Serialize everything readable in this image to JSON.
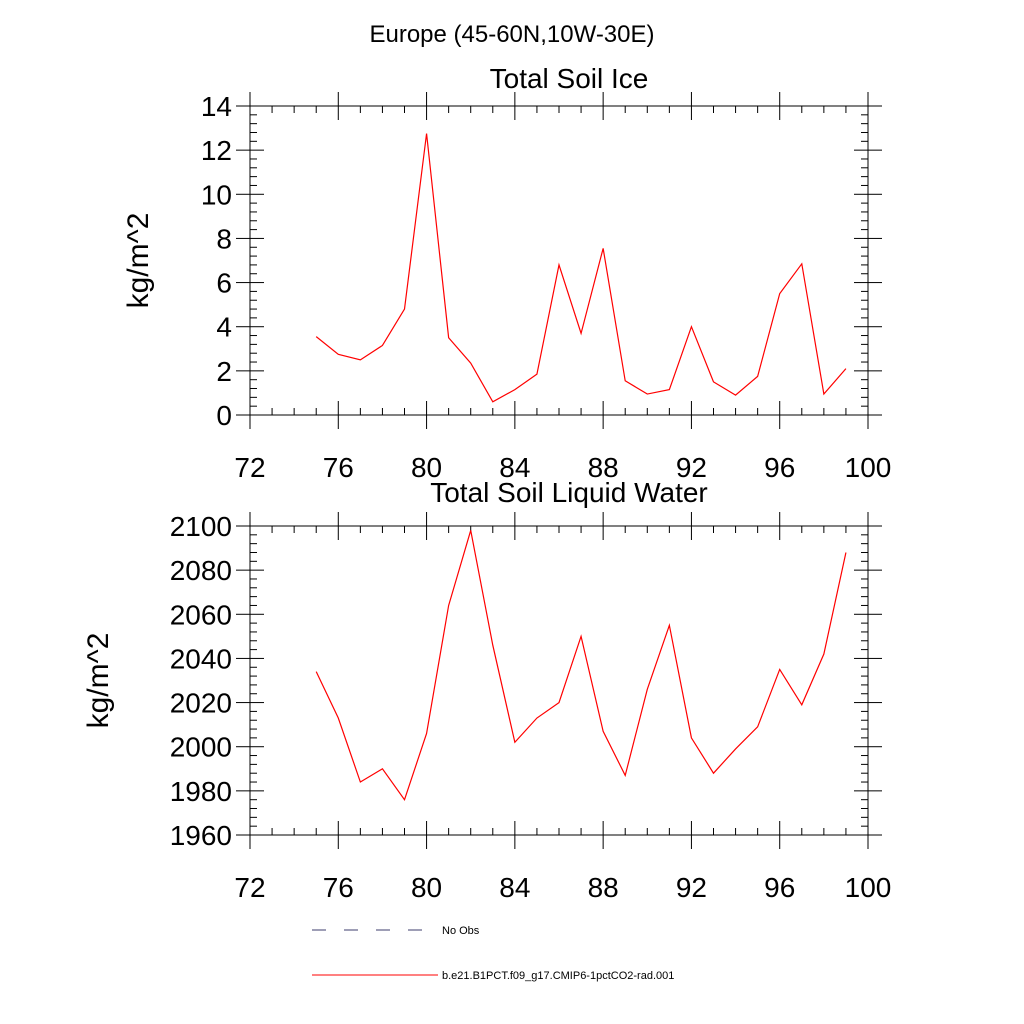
{
  "figure": {
    "title": "Europe (45-60N,10W-30E)"
  },
  "legend": {
    "items": [
      {
        "label": "No Obs",
        "style": "dashed",
        "color": "#3c3c6e"
      },
      {
        "label": "b.e21.B1PCT.f09_g17.CMIP6-1pctCO2-rad.001",
        "style": "solid",
        "color": "#ff0000"
      }
    ]
  },
  "chart_data": [
    {
      "type": "line",
      "title": "Total Soil Ice",
      "xlabel": "",
      "ylabel": "kg/m^2",
      "xlim": [
        72,
        100
      ],
      "ylim": [
        0,
        14
      ],
      "xticks": [
        72,
        76,
        80,
        84,
        88,
        92,
        96,
        100
      ],
      "yticks": [
        0,
        2,
        4,
        6,
        8,
        10,
        12,
        14
      ],
      "xtick_labels": [
        "72",
        "76",
        "80",
        "84",
        "88",
        "92",
        "96",
        "100"
      ],
      "ytick_labels": [
        "0",
        "2",
        "4",
        "6",
        "8",
        "10",
        "12",
        "14"
      ],
      "series": [
        {
          "name": "b.e21.B1PCT.f09_g17.CMIP6-1pctCO2-rad.001",
          "color": "#ff0000",
          "x": [
            75,
            76,
            77,
            78,
            79,
            80,
            81,
            82,
            83,
            84,
            85,
            86,
            87,
            88,
            89,
            90,
            91,
            92,
            93,
            94,
            95,
            96,
            97,
            98,
            99
          ],
          "y": [
            3.55,
            2.75,
            2.5,
            3.15,
            4.8,
            12.75,
            3.5,
            2.35,
            0.6,
            1.15,
            1.85,
            6.8,
            3.7,
            7.55,
            1.55,
            0.95,
            1.15,
            4.0,
            1.5,
            0.9,
            1.75,
            5.5,
            6.85,
            0.95,
            2.1
          ]
        }
      ]
    },
    {
      "type": "line",
      "title": "Total Soil Liquid Water",
      "xlabel": "",
      "ylabel": "kg/m^2",
      "xlim": [
        72,
        100
      ],
      "ylim": [
        1960,
        2100
      ],
      "xticks": [
        72,
        76,
        80,
        84,
        88,
        92,
        96,
        100
      ],
      "yticks": [
        1960,
        1980,
        2000,
        2020,
        2040,
        2060,
        2080,
        2100
      ],
      "xtick_labels": [
        "72",
        "76",
        "80",
        "84",
        "88",
        "92",
        "96",
        "100"
      ],
      "ytick_labels": [
        "1960",
        "1980",
        "2000",
        "2020",
        "2040",
        "2060",
        "2080",
        "2100"
      ],
      "series": [
        {
          "name": "b.e21.B1PCT.f09_g17.CMIP6-1pctCO2-rad.001",
          "color": "#ff0000",
          "x": [
            75,
            76,
            77,
            78,
            79,
            80,
            81,
            82,
            83,
            84,
            85,
            86,
            87,
            88,
            89,
            90,
            91,
            92,
            93,
            94,
            95,
            96,
            97,
            98,
            99
          ],
          "y": [
            2034,
            2013,
            1984,
            1990,
            1976,
            2006,
            2064,
            2098,
            2046,
            2002,
            2013,
            2020,
            2050,
            2007,
            1987,
            2026,
            2055,
            2004,
            1988,
            1999,
            2009,
            2035,
            2019,
            2042,
            2088
          ]
        }
      ]
    }
  ]
}
